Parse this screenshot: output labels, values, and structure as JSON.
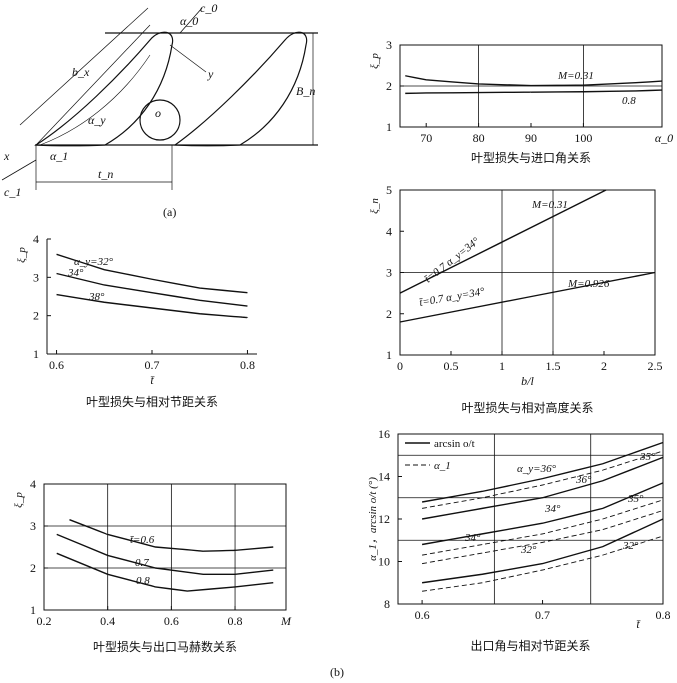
{
  "fig_a": {
    "sub": "(a)",
    "labels": [
      "b_x",
      "α_y",
      "o",
      "B_n",
      "α_1",
      "t_n",
      "c_1",
      "α_0",
      "c_0",
      "y",
      "x"
    ]
  },
  "figure_label": "(b)",
  "chart_data": [
    {
      "id": "c1",
      "type": "line",
      "caption": "叶型损失与进口角关系",
      "xlabel": "α_0",
      "ylabel": "ξ_p",
      "xlim": [
        65,
        115
      ],
      "ylim": [
        1,
        3
      ],
      "xticks": [
        70,
        80,
        90,
        100
      ],
      "yticks": [
        1,
        2,
        3
      ],
      "xgrid": [
        80,
        100
      ],
      "ygrid": [
        2
      ],
      "series": [
        {
          "name": "M=0.31",
          "x": [
            66,
            70,
            80,
            90,
            100,
            110,
            115
          ],
          "y": [
            2.25,
            2.15,
            2.05,
            2.01,
            2.02,
            2.08,
            2.12
          ]
        },
        {
          "name": "0.8",
          "x": [
            66,
            70,
            80,
            90,
            100,
            110,
            115
          ],
          "y": [
            1.82,
            1.83,
            1.84,
            1.85,
            1.86,
            1.88,
            1.9
          ]
        }
      ]
    },
    {
      "id": "c2",
      "type": "line",
      "caption": "叶型损失与相对高度关系",
      "xlabel": "b/l",
      "ylabel": "ξ_n",
      "xlim": [
        0,
        2.5
      ],
      "ylim": [
        1,
        5
      ],
      "xticks": [
        0,
        0.5,
        1.0,
        1.5,
        2.0,
        2.5
      ],
      "yticks": [
        1,
        2,
        3,
        4,
        5
      ],
      "xgrid": [
        1.0,
        1.5
      ],
      "ygrid": [
        3
      ],
      "series": [
        {
          "name": "M=0.31",
          "x": [
            0,
            2.02
          ],
          "y": [
            2.5,
            5.0
          ],
          "annot": "t̄=0.7  α_y=34°"
        },
        {
          "name": "M=0.926",
          "x": [
            0,
            2.5
          ],
          "y": [
            1.8,
            3.0
          ],
          "annot": "t̄=0.7  α_y=34°"
        }
      ]
    },
    {
      "id": "c3",
      "type": "line",
      "caption": "叶型损失与相对节距关系",
      "xlabel": "t̄",
      "ylabel": "ξ_p",
      "xlim": [
        0.59,
        0.81
      ],
      "ylim": [
        1,
        4
      ],
      "xticks": [
        0.6,
        0.7,
        0.8
      ],
      "yticks": [
        1,
        2,
        3,
        4
      ],
      "series": [
        {
          "name": "α_y=32°",
          "x": [
            0.6,
            0.65,
            0.7,
            0.75,
            0.8
          ],
          "y": [
            3.6,
            3.2,
            2.95,
            2.72,
            2.6
          ]
        },
        {
          "name": "34°",
          "x": [
            0.6,
            0.65,
            0.7,
            0.75,
            0.8
          ],
          "y": [
            3.1,
            2.8,
            2.6,
            2.4,
            2.25
          ]
        },
        {
          "name": "38°",
          "x": [
            0.6,
            0.65,
            0.7,
            0.75,
            0.8
          ],
          "y": [
            2.55,
            2.35,
            2.2,
            2.05,
            1.95
          ]
        }
      ]
    },
    {
      "id": "c4",
      "type": "line",
      "caption": "叶型损失与出口马赫数关系",
      "xlabel": "M",
      "ylabel": "ξ_p",
      "xlim": [
        0.2,
        0.96
      ],
      "ylim": [
        1,
        4
      ],
      "xticks": [
        0.2,
        0.4,
        0.6,
        0.8
      ],
      "yticks": [
        1,
        2,
        3,
        4
      ],
      "xgrid": [
        0.4,
        0.6,
        0.8
      ],
      "ygrid": [
        2,
        3
      ],
      "series": [
        {
          "name": "t̄=0.6",
          "x": [
            0.28,
            0.4,
            0.55,
            0.7,
            0.8,
            0.92
          ],
          "y": [
            3.15,
            2.8,
            2.5,
            2.4,
            2.42,
            2.5
          ]
        },
        {
          "name": "0.7",
          "x": [
            0.24,
            0.4,
            0.55,
            0.7,
            0.8,
            0.92
          ],
          "y": [
            2.8,
            2.3,
            2.0,
            1.85,
            1.85,
            1.95
          ]
        },
        {
          "name": "0.8",
          "x": [
            0.24,
            0.4,
            0.55,
            0.65,
            0.8,
            0.92
          ],
          "y": [
            2.35,
            1.85,
            1.55,
            1.45,
            1.55,
            1.65
          ]
        }
      ]
    },
    {
      "id": "c5",
      "type": "line",
      "caption": "出口角与相对节距关系",
      "xlabel": "t̄",
      "ylabel": "α_1，arcsin o/t (°)",
      "xlim": [
        0.58,
        0.8
      ],
      "ylim": [
        8,
        16
      ],
      "xticks": [
        0.6,
        0.7,
        0.8
      ],
      "yticks": [
        8,
        10,
        12,
        14,
        16
      ],
      "xgrid": [
        0.66,
        0.74
      ],
      "ygrid": [
        11,
        13,
        15
      ],
      "legend": [
        "arcsin o/t",
        "α_1"
      ],
      "series": [
        {
          "name": "α_y=36°",
          "style": "solid",
          "x": [
            0.6,
            0.65,
            0.7,
            0.75,
            0.8
          ],
          "y": [
            12.8,
            13.3,
            13.9,
            14.6,
            15.6
          ]
        },
        {
          "name": "36°",
          "style": "dashed",
          "x": [
            0.6,
            0.65,
            0.7,
            0.75,
            0.8
          ],
          "y": [
            12.5,
            13.0,
            13.6,
            14.3,
            15.2
          ]
        },
        {
          "name": "35°",
          "style": "solid",
          "x": [
            0.6,
            0.65,
            0.7,
            0.75,
            0.8
          ],
          "y": [
            12.0,
            12.5,
            13.0,
            13.8,
            14.9
          ]
        },
        {
          "name": "34°",
          "style": "solid",
          "x": [
            0.6,
            0.65,
            0.7,
            0.75,
            0.8
          ],
          "y": [
            10.8,
            11.3,
            11.8,
            12.5,
            13.7
          ]
        },
        {
          "name": "35°",
          "style": "dashed",
          "x": [
            0.6,
            0.65,
            0.7,
            0.75,
            0.8
          ],
          "y": [
            10.3,
            10.8,
            11.3,
            12.0,
            12.9
          ]
        },
        {
          "name": "34°",
          "style": "dashed",
          "x": [
            0.6,
            0.65,
            0.7,
            0.75,
            0.8
          ],
          "y": [
            9.9,
            10.4,
            10.9,
            11.5,
            12.4
          ]
        },
        {
          "name": "32°",
          "style": "solid",
          "x": [
            0.6,
            0.65,
            0.7,
            0.75,
            0.8
          ],
          "y": [
            9.0,
            9.4,
            9.9,
            10.7,
            12.0
          ]
        },
        {
          "name": "32°",
          "style": "dashed",
          "x": [
            0.6,
            0.65,
            0.7,
            0.75,
            0.8
          ],
          "y": [
            8.6,
            9.0,
            9.6,
            10.3,
            11.2
          ]
        }
      ]
    }
  ]
}
